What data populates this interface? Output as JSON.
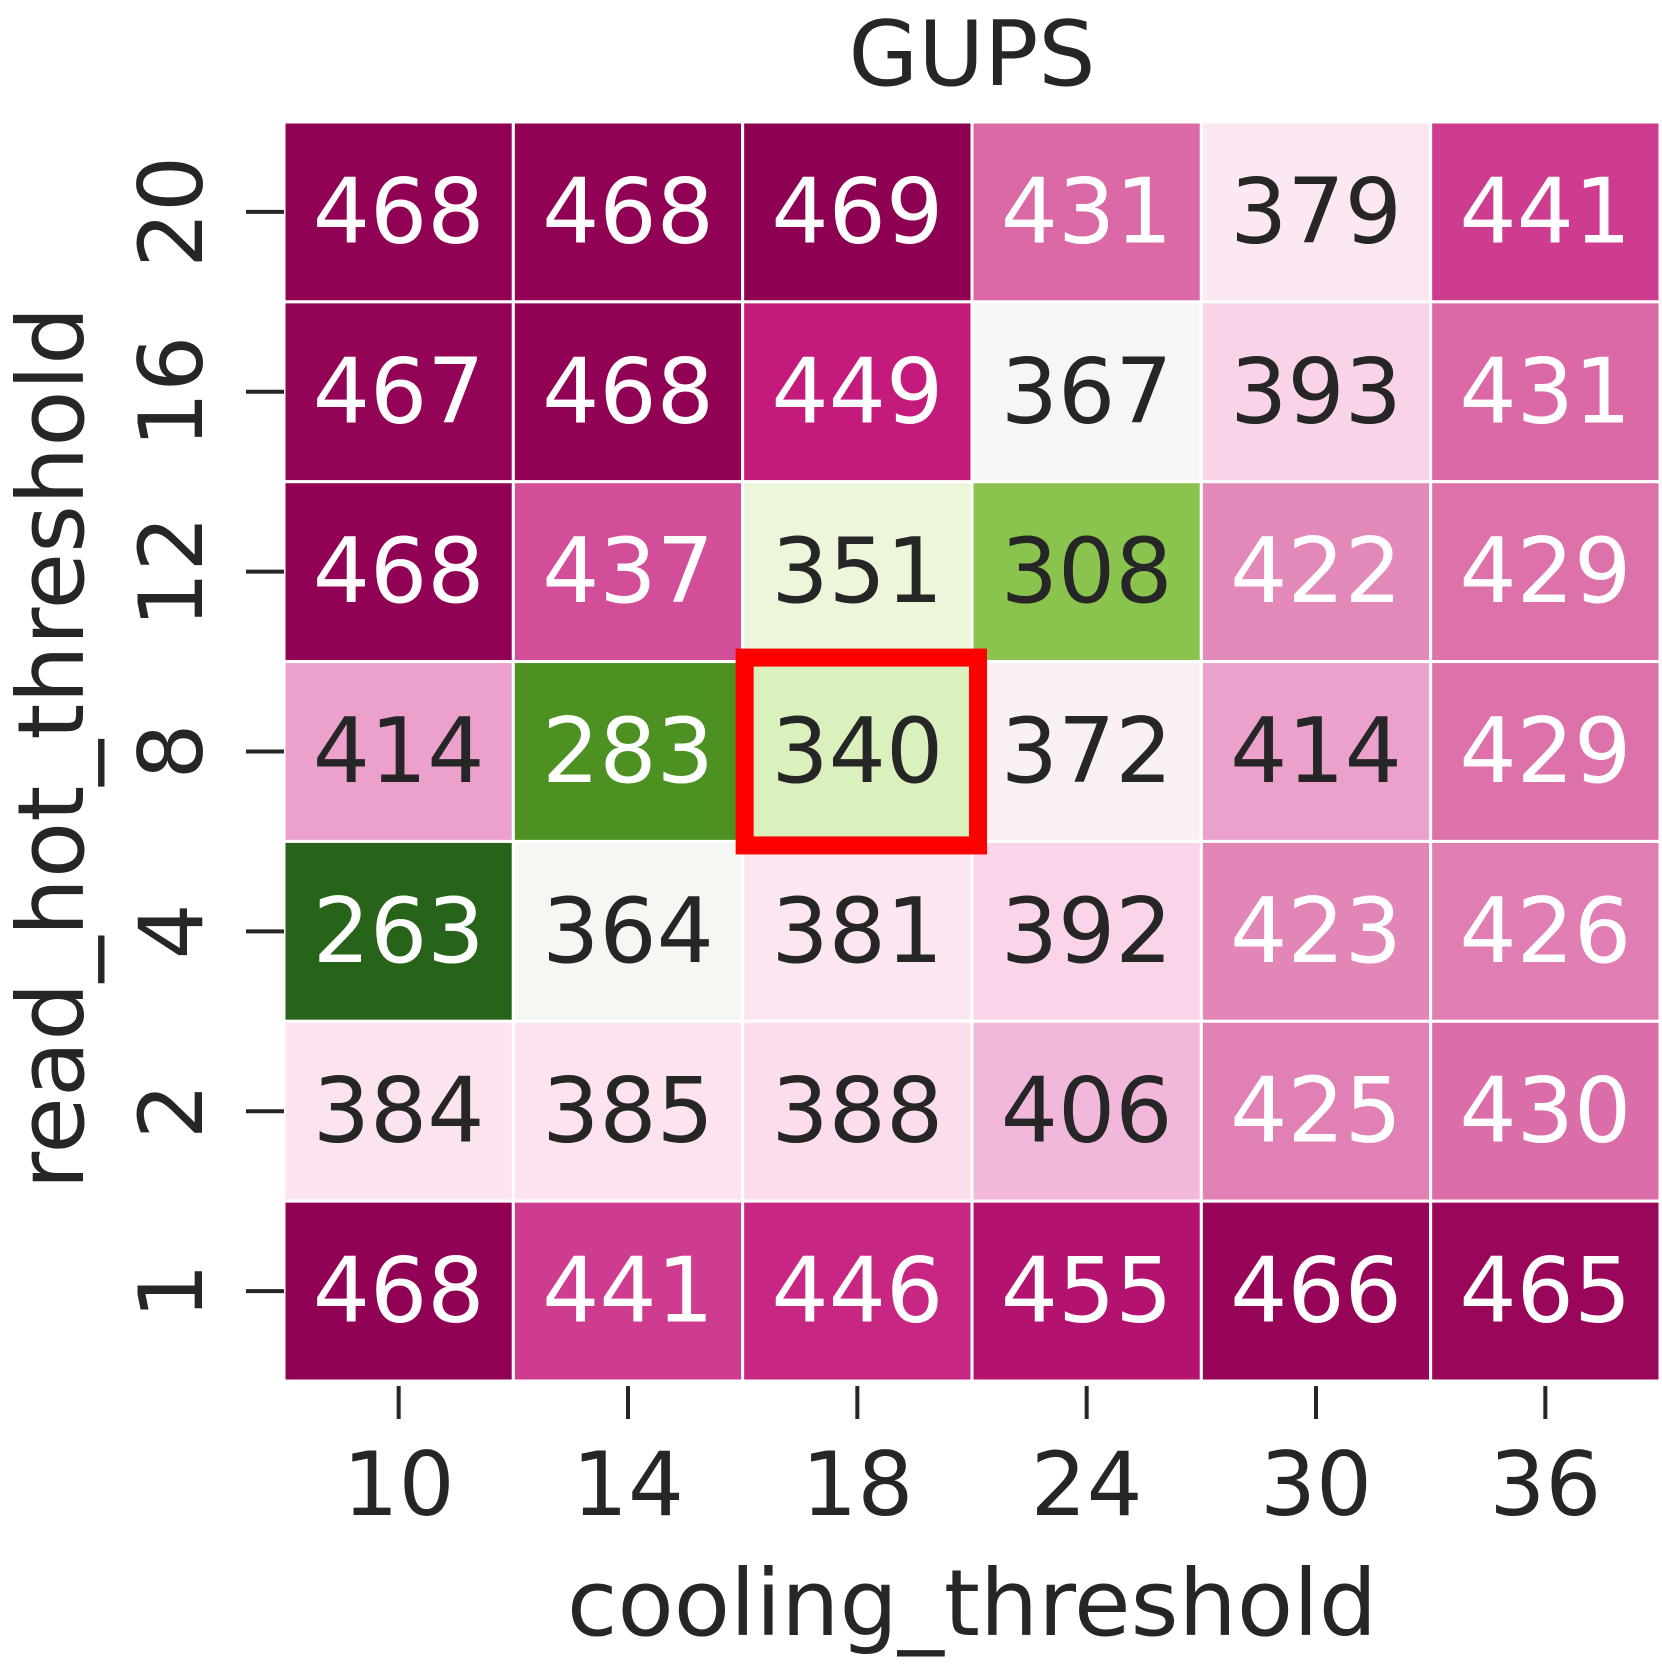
{
  "chart_data": {
    "type": "heatmap",
    "title": "GUPS",
    "xlabel": "cooling_threshold",
    "ylabel": "read_hot_threshold",
    "x_categories": [
      "10",
      "14",
      "18",
      "24",
      "30",
      "36"
    ],
    "y_categories": [
      "20",
      "16",
      "12",
      "8",
      "4",
      "2",
      "1"
    ],
    "values": [
      [
        468,
        468,
        469,
        431,
        379,
        441
      ],
      [
        467,
        468,
        449,
        367,
        393,
        431
      ],
      [
        468,
        437,
        351,
        308,
        422,
        429
      ],
      [
        414,
        283,
        340,
        372,
        414,
        429
      ],
      [
        263,
        364,
        381,
        392,
        423,
        426
      ],
      [
        384,
        385,
        388,
        406,
        425,
        430
      ],
      [
        468,
        441,
        446,
        455,
        466,
        465
      ]
    ],
    "colormap": "PiYG",
    "color_range": [
      263,
      469
    ],
    "highlight": {
      "x": "18",
      "y": "8",
      "color": "#ff0000"
    },
    "text_colors": {
      "dark": "#262626",
      "light": "#ffffff"
    },
    "grid_line_color": "#ffffff"
  }
}
